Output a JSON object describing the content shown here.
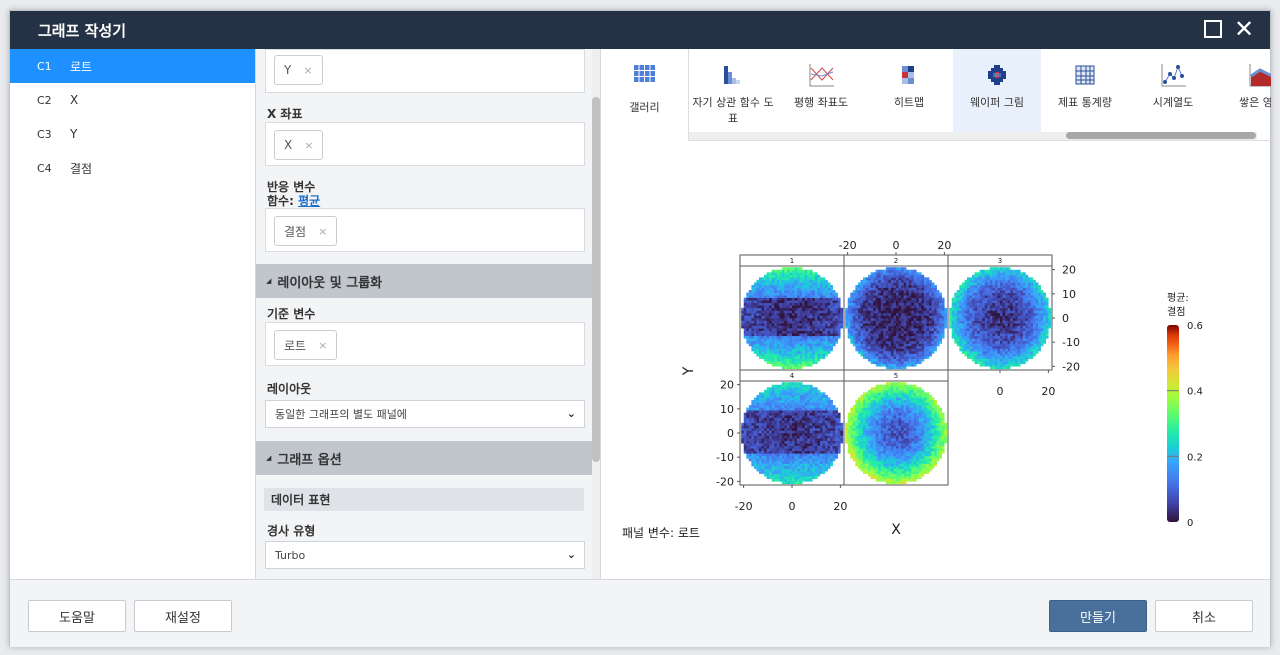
{
  "window": {
    "title": "그래프 작성기"
  },
  "columns": [
    {
      "id": "C1",
      "name": "로트",
      "selected": true
    },
    {
      "id": "C2",
      "name": "X"
    },
    {
      "id": "C3",
      "name": "Y"
    },
    {
      "id": "C4",
      "name": "결점"
    }
  ],
  "options": {
    "y_chip": "Y",
    "remove": "×",
    "x_label": "X 좌표",
    "x_chip": "X",
    "response_label": "반응 변수",
    "function_label": "함수:",
    "function_value": "평균",
    "response_chip": "결점",
    "layout_section": "레이아웃 및 그룹화",
    "by_label": "기준 변수",
    "by_chip": "로트",
    "layout_label": "레이아웃",
    "layout_value": "동일한 그래프의 별도 패널에",
    "graph_section": "그래프 옵션",
    "data_display": "데이터 표현",
    "gradient_label": "경사 유형",
    "gradient_value": "Turbo"
  },
  "gallery": {
    "label": "갤러리",
    "icon": "grid-icon"
  },
  "graph_types": [
    {
      "label": "자기 상관 함수 도표",
      "icon": "acf-icon"
    },
    {
      "label": "평행 좌표도",
      "icon": "parallel-icon"
    },
    {
      "label": "히트맵",
      "icon": "heatmap-icon"
    },
    {
      "label": "웨이퍼 그림",
      "icon": "wafer-icon",
      "active": true
    },
    {
      "label": "제표 통계량",
      "icon": "table-icon"
    },
    {
      "label": "시계열도",
      "icon": "timeseries-icon"
    },
    {
      "label": "쌓은 영역",
      "icon": "area-icon"
    }
  ],
  "chart_data": {
    "type": "heatmap",
    "subtype": "wafer",
    "xlabel": "X",
    "ylabel": "Y",
    "panels": [
      "1",
      "2",
      "3",
      "4",
      "5"
    ],
    "xticks": [
      "-20",
      "0",
      "20"
    ],
    "yticks": [
      "20",
      "10",
      "0",
      "-10",
      "-20"
    ],
    "xlim": [
      -21.5,
      21.5
    ],
    "ylim": [
      -21.5,
      21.5
    ],
    "colorbar": {
      "title": "평균:",
      "subtitle": "결점",
      "ticks": [
        "0.6",
        "0.4",
        "0.2",
        "0"
      ],
      "range": [
        0,
        0.6
      ],
      "colormap": "Turbo"
    },
    "panel_patterns": {
      "1": "dark horizontal band, higher top/bottom",
      "2": "low center, moderate edge",
      "3": "low center ring, higher edge",
      "4": "dark horizontal band",
      "5": "low center, high edge up to ~0.6"
    },
    "footnote": "패널 변수: 로트"
  },
  "footer": {
    "help": "도움말",
    "reset": "재설정",
    "create": "만들기",
    "cancel": "취소"
  }
}
